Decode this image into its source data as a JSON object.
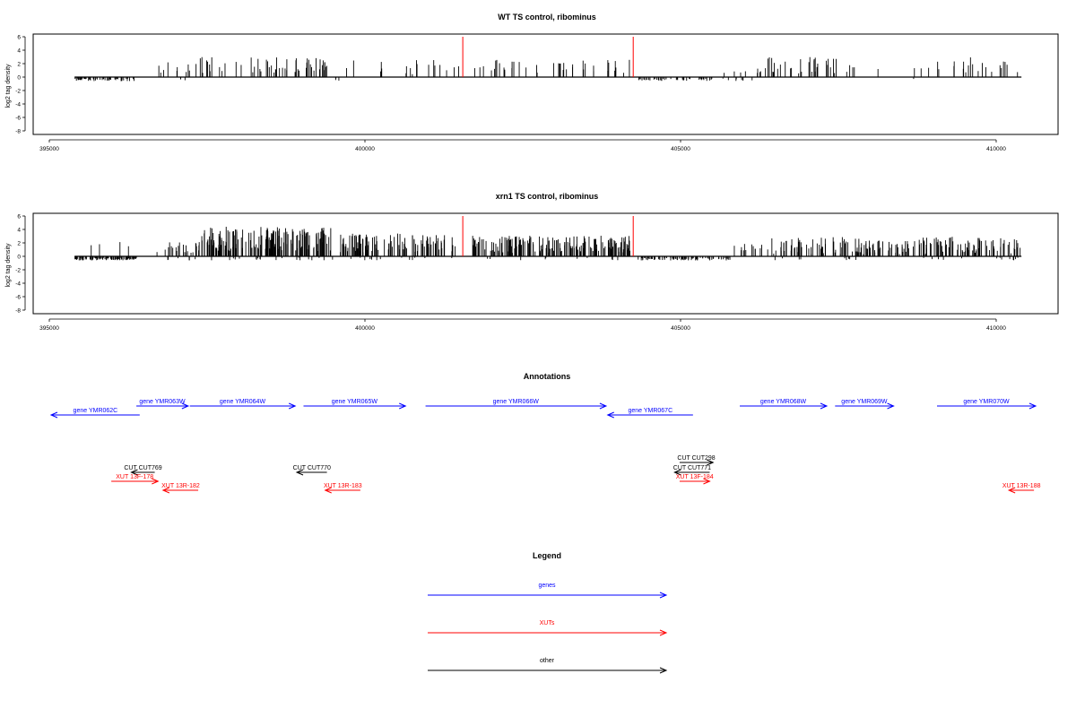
{
  "colors": {
    "gene": "#0000ff",
    "xut": "#ff0000",
    "other": "#000000",
    "axis": "#000000",
    "marker": "#ff0000"
  },
  "chart_data": [
    {
      "type": "bar",
      "title": "WT TS control, ribominus",
      "ylabel": "log2 tag density",
      "xlim": [
        394000,
        411000
      ],
      "ylim": [
        -8,
        6
      ],
      "x_ticks": [
        "395000",
        "400000",
        "405000",
        "410000"
      ],
      "y_ticks": [
        "6",
        "4",
        "2",
        "0",
        "-2",
        "-4",
        "-6",
        "-8"
      ],
      "markers_x": [
        401550,
        404250
      ],
      "seed": 17,
      "segments": [
        {
          "x0": 395400,
          "x1": 396400,
          "n": 55,
          "mean": -2.0,
          "amp": 1.4,
          "sign": -1
        },
        {
          "x0": 396700,
          "x1": 397300,
          "n": 9,
          "mean": 1.4,
          "amp": 0.8,
          "sign": 1
        },
        {
          "x0": 397000,
          "x1": 397200,
          "n": 3,
          "mean": -1.2,
          "amp": 0.4,
          "sign": -1
        },
        {
          "x0": 397300,
          "x1": 399400,
          "n": 55,
          "mean": 1.8,
          "amp": 1.2,
          "sign": 1
        },
        {
          "x0": 399400,
          "x1": 399600,
          "n": 3,
          "mean": -1.8,
          "amp": 0.6,
          "sign": -1
        },
        {
          "x0": 399700,
          "x1": 401500,
          "n": 18,
          "mean": 1.5,
          "amp": 1.1,
          "sign": 1
        },
        {
          "x0": 401700,
          "x1": 404200,
          "n": 40,
          "mean": 1.6,
          "amp": 1.0,
          "sign": 1
        },
        {
          "x0": 404300,
          "x1": 405500,
          "n": 45,
          "mean": -1.4,
          "amp": 1.1,
          "sign": -1
        },
        {
          "x0": 405500,
          "x1": 406200,
          "n": 8,
          "mean": -1.3,
          "amp": 1.4,
          "sign": -1
        },
        {
          "x0": 405600,
          "x1": 406200,
          "n": 4,
          "mean": 0.8,
          "amp": 0.3,
          "sign": 1
        },
        {
          "x0": 406200,
          "x1": 407500,
          "n": 35,
          "mean": 1.8,
          "amp": 1.3,
          "sign": 1
        },
        {
          "x0": 407500,
          "x1": 409000,
          "n": 8,
          "mean": 1.2,
          "amp": 0.6,
          "sign": 1
        },
        {
          "x0": 408600,
          "x1": 408700,
          "n": 1,
          "mean": -1.6,
          "amp": 0.1,
          "sign": -1
        },
        {
          "x0": 409000,
          "x1": 410400,
          "n": 20,
          "mean": 1.8,
          "amp": 1.2,
          "sign": 1
        }
      ]
    },
    {
      "type": "bar",
      "title": "xrn1 TS control, ribominus",
      "ylabel": "log2 tag density",
      "xlim": [
        394000,
        411000
      ],
      "ylim": [
        -8,
        6
      ],
      "x_ticks": [
        "395000",
        "400000",
        "405000",
        "410000"
      ],
      "y_ticks": [
        "6",
        "4",
        "2",
        "0",
        "-2",
        "-4",
        "-6",
        "-8"
      ],
      "markers_x": [
        401550,
        404250
      ],
      "seed": 29,
      "segments": [
        {
          "x0": 395400,
          "x1": 396400,
          "n": 110,
          "mean": -3.6,
          "amp": 1.8,
          "sign": -1
        },
        {
          "x0": 395600,
          "x1": 396300,
          "n": 4,
          "mean": 1.8,
          "amp": 0.6,
          "sign": 1
        },
        {
          "x0": 396700,
          "x1": 397300,
          "n": 18,
          "mean": 1.3,
          "amp": 0.8,
          "sign": 1
        },
        {
          "x0": 396800,
          "x1": 397600,
          "n": 8,
          "mean": -1.2,
          "amp": 0.8,
          "sign": -1
        },
        {
          "x0": 397300,
          "x1": 399500,
          "n": 190,
          "mean": 2.6,
          "amp": 1.8,
          "sign": 1
        },
        {
          "x0": 397500,
          "x1": 399500,
          "n": 20,
          "mean": -1.3,
          "amp": 0.8,
          "sign": -1
        },
        {
          "x0": 399600,
          "x1": 401500,
          "n": 110,
          "mean": 2.0,
          "amp": 1.4,
          "sign": 1
        },
        {
          "x0": 399600,
          "x1": 401400,
          "n": 14,
          "mean": -1.5,
          "amp": 1.1,
          "sign": -1
        },
        {
          "x0": 401700,
          "x1": 404200,
          "n": 180,
          "mean": 1.8,
          "amp": 1.3,
          "sign": 1
        },
        {
          "x0": 401700,
          "x1": 404200,
          "n": 10,
          "mean": -0.8,
          "amp": 0.4,
          "sign": -1
        },
        {
          "x0": 404300,
          "x1": 405900,
          "n": 90,
          "mean": -1.9,
          "amp": 1.1,
          "sign": -1
        },
        {
          "x0": 405800,
          "x1": 406400,
          "n": 12,
          "mean": 1.3,
          "amp": 0.6,
          "sign": 1
        },
        {
          "x0": 406300,
          "x1": 410400,
          "n": 190,
          "mean": 1.6,
          "amp": 1.3,
          "sign": 1
        },
        {
          "x0": 406400,
          "x1": 410400,
          "n": 22,
          "mean": -0.9,
          "amp": 0.5,
          "sign": -1
        }
      ]
    }
  ],
  "annotations": {
    "title": "Annotations",
    "genes": [
      {
        "label": "gene YMR062C",
        "x0": 394150,
        "x1": 396800,
        "dir": "rev",
        "row": 1
      },
      {
        "label": "gene YMR063W",
        "x0": 396700,
        "x1": 398250,
        "dir": "fwd",
        "row": 0
      },
      {
        "label": "gene YMR064W",
        "x0": 398300,
        "x1": 401450,
        "dir": "fwd",
        "row": 0
      },
      {
        "label": "gene YMR065W",
        "x0": 401700,
        "x1": 404750,
        "dir": "fwd",
        "row": 0
      },
      {
        "label": "gene YMR066W",
        "x0": 405350,
        "x1": 410750,
        "dir": "fwd",
        "row": 0
      },
      {
        "label": "gene YMR067C",
        "x0": 410800,
        "x1": 413350,
        "dir": "rev",
        "row": 1
      },
      {
        "label": "gene YMR068W",
        "x0": 414750,
        "x1": 417350,
        "dir": "fwd",
        "row": 0
      },
      {
        "label": "gene YMR069W",
        "x0": 417600,
        "x1": 419350,
        "dir": "fwd",
        "row": 0
      },
      {
        "label": "gene YMR070W",
        "x0": 420650,
        "x1": 423600,
        "dir": "fwd",
        "row": 0
      }
    ],
    "cuts": [
      {
        "label": "CUT CUT769",
        "x0": 396550,
        "x1": 397250,
        "dir": "rev",
        "row": 1
      },
      {
        "label": "CUT CUT770",
        "x0": 401500,
        "x1": 402400,
        "dir": "rev",
        "row": 1
      },
      {
        "label": "CUT CUT298",
        "x0": 412950,
        "x1": 413950,
        "dir": "fwd",
        "row": 0
      },
      {
        "label": "CUT CUT771",
        "x0": 412800,
        "x1": 413850,
        "dir": "rev",
        "row": 1
      }
    ],
    "xuts": [
      {
        "label": "XUT 13F-178",
        "x0": 395950,
        "x1": 397350,
        "dir": "fwd",
        "row": 2
      },
      {
        "label": "XUT 13R-182",
        "x0": 397500,
        "x1": 398550,
        "dir": "rev",
        "row": 3
      },
      {
        "label": "XUT 13R-183",
        "x0": 402350,
        "x1": 403400,
        "dir": "rev",
        "row": 3
      },
      {
        "label": "XUT 13F-184",
        "x0": 412950,
        "x1": 413850,
        "dir": "fwd",
        "row": 2
      },
      {
        "label": "XUT 13R-188",
        "x0": 422800,
        "x1": 423550,
        "dir": "rev",
        "row": 3
      }
    ]
  },
  "legend": {
    "title": "Legend",
    "items": [
      {
        "label": "genes",
        "color": "#0000ff"
      },
      {
        "label": "XUTs",
        "color": "#ff0000"
      },
      {
        "label": "other",
        "color": "#000000"
      }
    ]
  }
}
